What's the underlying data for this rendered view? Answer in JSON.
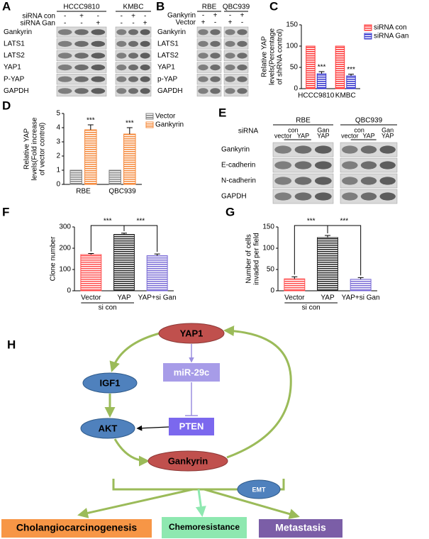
{
  "panel_labels": [
    "A",
    "B",
    "C",
    "D",
    "E",
    "F",
    "G",
    "H"
  ],
  "blot_a": {
    "groups": [
      "HCCC9810",
      "KMBC"
    ],
    "rows": [
      {
        "label": "siRNA con",
        "signs": [
          [
            "-",
            "+",
            "-"
          ],
          [
            "-",
            "+",
            "-"
          ]
        ]
      },
      {
        "label": "siRNA Gan",
        "signs": [
          [
            "-",
            "-",
            "+"
          ],
          [
            "-",
            "-",
            "+"
          ]
        ]
      }
    ],
    "proteins": [
      "Gankyrin",
      "LATS1",
      "LATS2",
      "YAP1",
      "P-YAP",
      "GAPDH"
    ]
  },
  "blot_b": {
    "groups": [
      "RBE",
      "QBC939"
    ],
    "rows": [
      {
        "label": "Gankyrin",
        "signs": [
          [
            "-",
            "+"
          ],
          [
            "-",
            "+"
          ]
        ]
      },
      {
        "label": "Vector",
        "signs": [
          [
            "+",
            "-"
          ],
          [
            "+",
            "-"
          ]
        ]
      }
    ],
    "proteins": [
      "Gankyrin",
      "LATS1",
      "LATS2",
      "YAP1",
      "p-YAP",
      "GAPDH"
    ]
  },
  "blot_e": {
    "condition_label": "siRNA",
    "groups": [
      "RBE",
      "QBC939"
    ],
    "sirna": [
      [
        "con",
        "Gan"
      ],
      [
        "con",
        "Gan"
      ]
    ],
    "treatments": [
      [
        "vector",
        "YAP",
        "YAP"
      ],
      [
        "vector",
        "YAP",
        "YAP"
      ]
    ],
    "proteins": [
      "Gankyrin",
      "E-cadherin",
      "N-cadherin",
      "GAPDH"
    ]
  },
  "chart_data": [
    {
      "type": "bar",
      "y_label": [
        "Relative YAP",
        "levels(Percentage",
        "of shRNA control)"
      ],
      "categories": [
        "HCCC9810",
        "KMBC"
      ],
      "series": [
        {
          "name": "siRNA con",
          "color": "#ff3333",
          "values": [
            100,
            100
          ]
        },
        {
          "name": "siRNA Gan",
          "color": "#3333cc",
          "values": [
            35,
            30
          ],
          "errors": [
            5,
            4
          ]
        }
      ],
      "ylim": [
        0,
        150
      ],
      "yticks": [
        0,
        50,
        100,
        150
      ],
      "legend": "right",
      "annotations": [
        "***",
        "***"
      ]
    },
    {
      "type": "bar",
      "y_label": [
        "Relative YAP",
        "levels(Fold increase",
        "of vector control)"
      ],
      "categories": [
        "RBE",
        "QBC939"
      ],
      "series": [
        {
          "name": "Vector",
          "color": "#808080",
          "values": [
            1,
            1
          ]
        },
        {
          "name": "Gankyrin",
          "color": "#f5883a",
          "values": [
            3.85,
            3.55
          ],
          "errors": [
            0.35,
            0.45
          ]
        }
      ],
      "ylim": [
        0,
        5
      ],
      "yticks": [
        0,
        1,
        2,
        3,
        4,
        5
      ],
      "legend": "right",
      "annotations": [
        "***",
        "***"
      ]
    },
    {
      "type": "bar",
      "y_label": [
        "Clone number"
      ],
      "categories": [
        "Vector",
        "YAP",
        "YAP+si Gan"
      ],
      "group_label": "si con",
      "values": [
        170,
        265,
        165
      ],
      "errors": [
        5,
        6,
        8
      ],
      "colors": [
        "#ff4d4d",
        "#222222",
        "#7a6bd6"
      ],
      "ylim": [
        0,
        300
      ],
      "yticks": [
        0,
        100,
        200,
        300
      ],
      "annotations": [
        "***",
        "***"
      ]
    },
    {
      "type": "bar",
      "y_label": [
        "Number of cells",
        "invaded per field"
      ],
      "categories": [
        "Vector",
        "YAP",
        "YAP+si Gan"
      ],
      "group_label": "si con",
      "values": [
        28,
        125,
        27
      ],
      "errors": [
        5,
        5,
        4
      ],
      "colors": [
        "#ff4d4d",
        "#222222",
        "#7a6bd6"
      ],
      "ylim": [
        0,
        150
      ],
      "yticks": [
        0,
        50,
        100,
        150
      ],
      "annotations": [
        "***",
        "***"
      ]
    }
  ],
  "diagram": {
    "nodes": [
      "YAP1",
      "miR-29c",
      "IGF1",
      "PTEN",
      "AKT",
      "Gankyrin",
      "EMT",
      "Cholangiocarcinogenesis",
      "Chemoresistance",
      "Metastasis"
    ]
  }
}
